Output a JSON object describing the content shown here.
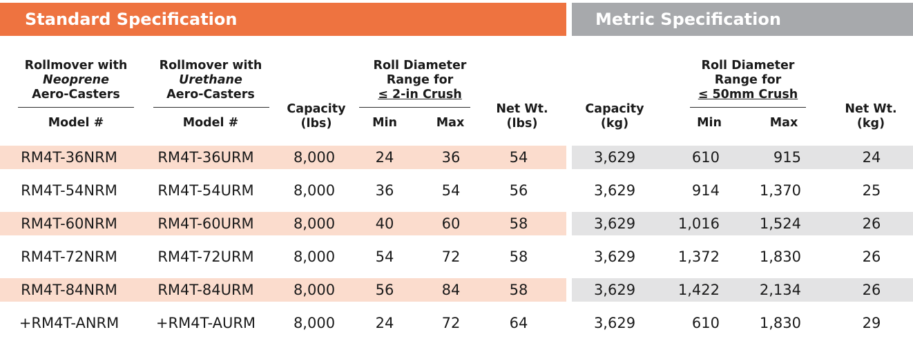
{
  "banners": {
    "standard": "Standard Specification",
    "metric": "Metric Specification"
  },
  "headers": {
    "neoprene": {
      "line1": "Rollmover with",
      "line2": "Neoprene",
      "line3": "Aero-Casters",
      "model": "Model #"
    },
    "urethane": {
      "line1": "Rollmover with",
      "line2": "Urethane",
      "line3": "Aero-Casters",
      "model": "Model #"
    },
    "capacity_lbs": {
      "line1": "Capacity",
      "line2": "(lbs)"
    },
    "roll_std": {
      "line1": "Roll Diameter",
      "line2": "Range for",
      "line3": "≤ 2-in Crush",
      "min": "Min",
      "max": "Max"
    },
    "netwt_lbs": {
      "line1": "Net Wt.",
      "line2": "(lbs)"
    },
    "capacity_kg": {
      "line1": "Capacity",
      "line2": "(kg)"
    },
    "roll_met": {
      "line1": "Roll Diameter",
      "line2": "Range for",
      "line3": "≤ 50mm Crush",
      "min": "Min",
      "max": "Max"
    },
    "netwt_kg": {
      "line1": "Net Wt.",
      "line2": "(kg)"
    }
  },
  "rows": [
    {
      "neoprene": "RM4T-36NRM",
      "urethane": "RM4T-36URM",
      "cap_lbs": "8,000",
      "min_in": "24",
      "max_in": "36",
      "wt_lbs": "54",
      "cap_kg": "3,629",
      "min_mm": "610",
      "max_mm": "915",
      "wt_kg": "24"
    },
    {
      "neoprene": "RM4T-54NRM",
      "urethane": "RM4T-54URM",
      "cap_lbs": "8,000",
      "min_in": "36",
      "max_in": "54",
      "wt_lbs": "56",
      "cap_kg": "3,629",
      "min_mm": "914",
      "max_mm": "1,370",
      "wt_kg": "25"
    },
    {
      "neoprene": "RM4T-60NRM",
      "urethane": "RM4T-60URM",
      "cap_lbs": "8,000",
      "min_in": "40",
      "max_in": "60",
      "wt_lbs": "58",
      "cap_kg": "3,629",
      "min_mm": "1,016",
      "max_mm": "1,524",
      "wt_kg": "26"
    },
    {
      "neoprene": "RM4T-72NRM",
      "urethane": "RM4T-72URM",
      "cap_lbs": "8,000",
      "min_in": "54",
      "max_in": "72",
      "wt_lbs": "58",
      "cap_kg": "3,629",
      "min_mm": "1,372",
      "max_mm": "1,830",
      "wt_kg": "26"
    },
    {
      "neoprene": "RM4T-84NRM",
      "urethane": "RM4T-84URM",
      "cap_lbs": "8,000",
      "min_in": "56",
      "max_in": "84",
      "wt_lbs": "58",
      "cap_kg": "3,629",
      "min_mm": "1,422",
      "max_mm": "2,134",
      "wt_kg": "26"
    },
    {
      "neoprene": "+RM4T-ANRM",
      "urethane": "+RM4T-AURM",
      "cap_lbs": "8,000",
      "min_in": "24",
      "max_in": "72",
      "wt_lbs": "64",
      "cap_kg": "3,629",
      "min_mm": "610",
      "max_mm": "1,830",
      "wt_kg": "29"
    }
  ],
  "colors": {
    "standard_banner": "#ee7340",
    "metric_banner": "#a7a9ac",
    "standard_row_shade": "#fbdccd",
    "metric_row_shade": "#e3e3e4"
  }
}
